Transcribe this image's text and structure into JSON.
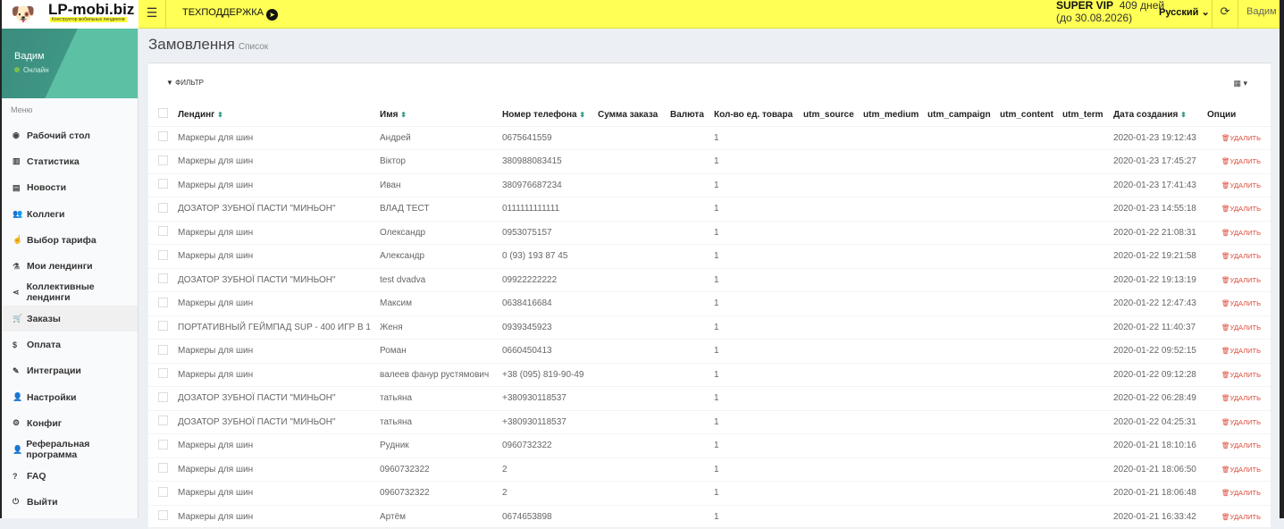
{
  "brand": {
    "name": "LP-mobi.biz",
    "tagline": "Конструктор мобильных лендингов"
  },
  "topbar": {
    "support": "ТЕХПОДДЕРЖКА",
    "plan": "SUPER VIP",
    "days": "409 дней",
    "until": "(до 30.08.2026)",
    "language": "Русский",
    "user": "Вадим"
  },
  "sidebar": {
    "user": "Вадим",
    "status": "Онлайн",
    "menu_header": "Меню",
    "items": [
      {
        "label": "Рабочий стол",
        "icon": "dashboard-icon",
        "glyph": "◉"
      },
      {
        "label": "Статистика",
        "icon": "bar-chart-icon",
        "glyph": "▥"
      },
      {
        "label": "Новости",
        "icon": "newspaper-icon",
        "glyph": "▤"
      },
      {
        "label": "Коллеги",
        "icon": "users-icon",
        "glyph": "👥"
      },
      {
        "label": "Выбор тарифа",
        "icon": "hand-pointer-icon",
        "glyph": "☝"
      },
      {
        "label": "Мои лендинги",
        "icon": "flask-icon",
        "glyph": "⚗"
      },
      {
        "label": "Коллективные лендинги",
        "icon": "share-icon",
        "glyph": "⋖"
      },
      {
        "label": "Заказы",
        "icon": "cart-icon",
        "glyph": "🛒",
        "active": true
      },
      {
        "label": "Оплата",
        "icon": "dollar-icon",
        "glyph": "$"
      },
      {
        "label": "Интеграции",
        "icon": "plug-icon",
        "glyph": "✎"
      },
      {
        "label": "Настройки",
        "icon": "user-icon",
        "glyph": "👤"
      },
      {
        "label": "Конфиг",
        "icon": "cogs-icon",
        "glyph": "⚙"
      },
      {
        "label": "Реферальная программа",
        "icon": "user-plus-icon",
        "glyph": "👤"
      },
      {
        "label": "FAQ",
        "icon": "question-icon",
        "glyph": "?"
      },
      {
        "label": "Выйти",
        "icon": "power-icon",
        "glyph": "⏻"
      }
    ]
  },
  "page": {
    "title": "Замовлення",
    "subtitle": "Список",
    "filter": "ФИЛЬТР"
  },
  "table": {
    "columns": [
      "Лендинг",
      "Имя",
      "Номер телефона",
      "Сумма заказа",
      "Валюта",
      "Кол-во ед. товара",
      "utm_source",
      "utm_medium",
      "utm_campaign",
      "utm_content",
      "utm_term",
      "Дата создания",
      "Опции"
    ],
    "sortable": [
      true,
      true,
      true,
      false,
      false,
      false,
      false,
      false,
      false,
      false,
      false,
      true,
      false
    ],
    "delete_label": "УДАЛИТЬ",
    "rows": [
      [
        "Маркеры для шин",
        "Андрей",
        "0675641559",
        "",
        "",
        "1",
        "",
        "",
        "",
        "",
        "",
        "2020-01-23 19:12:43"
      ],
      [
        "Маркеры для шин",
        "Віктор",
        "380988083415",
        "",
        "",
        "1",
        "",
        "",
        "",
        "",
        "",
        "2020-01-23 17:45:27"
      ],
      [
        "Маркеры для шин",
        "Иван",
        "380976687234",
        "",
        "",
        "1",
        "",
        "",
        "",
        "",
        "",
        "2020-01-23 17:41:43"
      ],
      [
        "ДОЗАТОР ЗУБНОЇ ПАСТИ \"МИНЬОН\"",
        "ВЛАД ТЕСТ",
        "0111111111111",
        "",
        "",
        "1",
        "",
        "",
        "",
        "",
        "",
        "2020-01-23 14:55:18"
      ],
      [
        "Маркеры для шин",
        "Олександр",
        "0953075157",
        "",
        "",
        "1",
        "",
        "",
        "",
        "",
        "",
        "2020-01-22 21:08:31"
      ],
      [
        "Маркеры для шин",
        "Александр",
        "0 (93) 193 87 45",
        "",
        "",
        "1",
        "",
        "",
        "",
        "",
        "",
        "2020-01-22 19:21:58"
      ],
      [
        "ДОЗАТОР ЗУБНОЇ ПАСТИ \"МИНЬОН\"",
        "test dvadva",
        "09922222222",
        "",
        "",
        "1",
        "",
        "",
        "",
        "",
        "",
        "2020-01-22 19:13:19"
      ],
      [
        "Маркеры для шин",
        "Максим",
        "0638416684",
        "",
        "",
        "1",
        "",
        "",
        "",
        "",
        "",
        "2020-01-22 12:47:43"
      ],
      [
        "ПОРТАТИВНЫЙ ГЕЙМПАД SUP - 400 ИГР В 1",
        "Женя",
        "0939345923",
        "",
        "",
        "1",
        "",
        "",
        "",
        "",
        "",
        "2020-01-22 11:40:37"
      ],
      [
        "Маркеры для шин",
        "Роман",
        "0660450413",
        "",
        "",
        "1",
        "",
        "",
        "",
        "",
        "",
        "2020-01-22 09:52:15"
      ],
      [
        "Маркеры для шин",
        "валеев фанур рустямович",
        "+38 (095) 819-90-49",
        "",
        "",
        "1",
        "",
        "",
        "",
        "",
        "",
        "2020-01-22 09:12:28"
      ],
      [
        "ДОЗАТОР ЗУБНОЇ ПАСТИ \"МИНЬОН\"",
        "татьяна",
        "+380930118537",
        "",
        "",
        "1",
        "",
        "",
        "",
        "",
        "",
        "2020-01-22 06:28:49"
      ],
      [
        "ДОЗАТОР ЗУБНОЇ ПАСТИ \"МИНЬОН\"",
        "татьяна",
        "+380930118537",
        "",
        "",
        "1",
        "",
        "",
        "",
        "",
        "",
        "2020-01-22 04:25:31"
      ],
      [
        "Маркеры для шин",
        "Рудник",
        "0960732322",
        "",
        "",
        "1",
        "",
        "",
        "",
        "",
        "",
        "2020-01-21 18:10:16"
      ],
      [
        "Маркеры для шин",
        "0960732322",
        "2",
        "",
        "",
        "1",
        "",
        "",
        "",
        "",
        "",
        "2020-01-21 18:06:50"
      ],
      [
        "Маркеры для шин",
        "0960732322",
        "2",
        "",
        "",
        "1",
        "",
        "",
        "",
        "",
        "",
        "2020-01-21 18:06:48"
      ],
      [
        "Маркеры для шин",
        "Артём",
        "0674653898",
        "",
        "",
        "1",
        "",
        "",
        "",
        "",
        "",
        "2020-01-21 16:33:42"
      ]
    ]
  }
}
